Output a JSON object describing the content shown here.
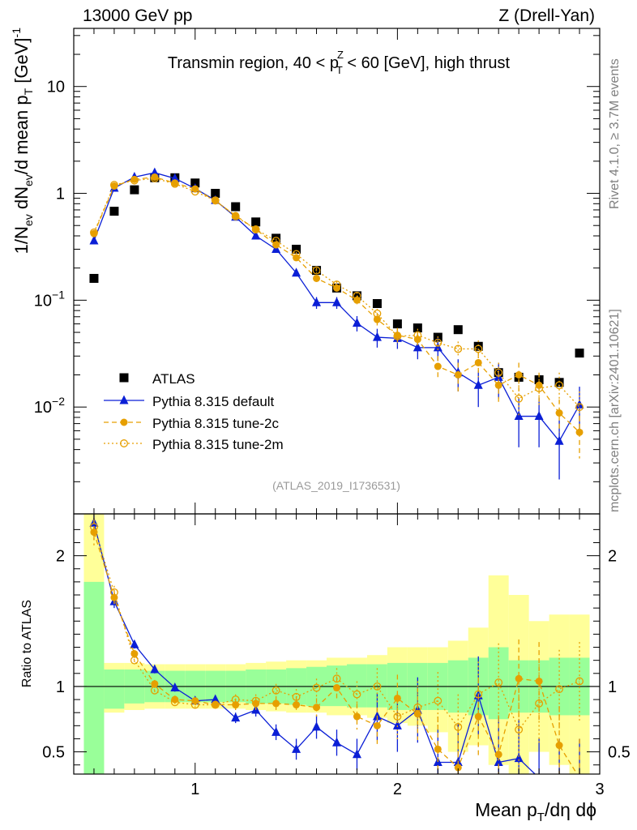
{
  "header": {
    "energy_label": "13000 GeV pp",
    "process_label": "Z (Drell-Yan)"
  },
  "side_labels": {
    "rivet": "Rivet 4.1.0, ≥ 3.7M events",
    "mcplots": "mcplots.cern.ch [arXiv:2401.10621]"
  },
  "chart_data": {
    "type": "scatter",
    "title_parts": [
      "Transmin region, 40 < p",
      "Z",
      "T",
      " < 60 [GeV], high thrust"
    ],
    "analysis_label": "(ATLAS_2019_I1736531)",
    "xlabel_parts": [
      "Mean p",
      "T",
      "/dη dϕ"
    ],
    "ylabel_parts": [
      "1/N",
      "ev",
      " dN",
      "ev",
      "/d mean p",
      "T",
      " [GeV]",
      "-1"
    ],
    "ratio_ylabel": "Ratio to ATLAS",
    "xlim": [
      0.4,
      3.0
    ],
    "ylim_log": [
      0.001,
      35
    ],
    "ratio_ylim": [
      0.33,
      2.32
    ],
    "x_ticks": [
      {
        "v": 1,
        "label": "1"
      },
      {
        "v": 2,
        "label": "2"
      },
      {
        "v": 3,
        "label": "3"
      }
    ],
    "y_ticks": [
      {
        "v": 10,
        "base": "10",
        "exp": ""
      },
      {
        "v": 1,
        "base": "1",
        "exp": ""
      },
      {
        "v": 0.1,
        "base": "10",
        "exp": "−1"
      },
      {
        "v": 0.01,
        "base": "10",
        "exp": "−2"
      }
    ],
    "ratio_ticks": [
      {
        "v": 0.5,
        "label": "0.5"
      },
      {
        "v": 1,
        "label": "1"
      },
      {
        "v": 2,
        "label": "2"
      }
    ],
    "x": [
      0.5,
      0.6,
      0.7,
      0.8,
      0.9,
      1.0,
      1.1,
      1.2,
      1.3,
      1.4,
      1.5,
      1.6,
      1.7,
      1.8,
      1.9,
      2.0,
      2.1,
      2.2,
      2.3,
      2.4,
      2.5,
      2.6,
      2.7,
      2.8,
      2.9
    ],
    "band_inner": [
      [
        0.3,
        1.8
      ],
      [
        0.83,
        1.13
      ],
      [
        0.87,
        1.13
      ],
      [
        0.88,
        1.12
      ],
      [
        0.88,
        1.12
      ],
      [
        0.88,
        1.12
      ],
      [
        0.88,
        1.12
      ],
      [
        0.88,
        1.12
      ],
      [
        0.87,
        1.13
      ],
      [
        0.87,
        1.13
      ],
      [
        0.86,
        1.14
      ],
      [
        0.85,
        1.15
      ],
      [
        0.85,
        1.16
      ],
      [
        0.84,
        1.17
      ],
      [
        0.84,
        1.17
      ],
      [
        0.82,
        1.18
      ],
      [
        0.82,
        1.18
      ],
      [
        0.82,
        1.18
      ],
      [
        0.8,
        1.2
      ],
      [
        0.78,
        1.22
      ],
      [
        0.75,
        1.3
      ],
      [
        0.8,
        1.2
      ],
      [
        0.8,
        1.2
      ],
      [
        0.78,
        1.22
      ],
      [
        0.78,
        1.22
      ]
    ],
    "band_outer": [
      [
        0.3,
        2.32
      ],
      [
        0.8,
        1.18
      ],
      [
        0.82,
        1.18
      ],
      [
        0.83,
        1.17
      ],
      [
        0.83,
        1.17
      ],
      [
        0.83,
        1.17
      ],
      [
        0.83,
        1.17
      ],
      [
        0.83,
        1.17
      ],
      [
        0.82,
        1.18
      ],
      [
        0.81,
        1.19
      ],
      [
        0.8,
        1.2
      ],
      [
        0.8,
        1.2
      ],
      [
        0.78,
        1.22
      ],
      [
        0.78,
        1.22
      ],
      [
        0.76,
        1.24
      ],
      [
        0.72,
        1.3
      ],
      [
        0.7,
        1.3
      ],
      [
        0.65,
        1.3
      ],
      [
        0.5,
        1.35
      ],
      [
        0.55,
        1.45
      ],
      [
        0.4,
        1.85
      ],
      [
        0.33,
        1.7
      ],
      [
        0.5,
        1.5
      ],
      [
        0.4,
        1.55
      ],
      [
        0.33,
        1.55
      ]
    ],
    "series": [
      {
        "name": "ATLAS",
        "color": "#000000",
        "marker": "square",
        "values": [
          0.16,
          0.68,
          1.08,
          1.4,
          1.4,
          1.25,
          1.0,
          0.75,
          0.54,
          0.38,
          0.3,
          0.19,
          0.13,
          0.11,
          0.093,
          0.06,
          0.055,
          0.045,
          0.053,
          0.037,
          0.021,
          0.019,
          0.018,
          0.017,
          0.032
        ]
      },
      {
        "name": "Pythia 8.315 default",
        "color": "#0b1fd6",
        "marker": "triangle",
        "line": "solid",
        "values": [
          0.36,
          1.12,
          1.42,
          1.56,
          1.38,
          1.11,
          0.86,
          0.6,
          0.4,
          0.3,
          0.18,
          0.095,
          0.095,
          0.061,
          0.045,
          0.044,
          0.036,
          0.036,
          0.021,
          0.016,
          0.019,
          0.0082,
          0.0082,
          0.0048,
          0.0105
        ],
        "errors": [
          0.02,
          0.05,
          0.06,
          0.06,
          0.06,
          0.05,
          0.04,
          0.03,
          0.02,
          0.015,
          0.01,
          0.012,
          0.012,
          0.01,
          0.009,
          0.009,
          0.008,
          0.009,
          0.007,
          0.006,
          0.007,
          0.004,
          0.004,
          0.0027,
          0.005
        ],
        "ratio": [
          2.25,
          1.65,
          1.32,
          1.13,
          0.99,
          0.89,
          0.9,
          0.76,
          0.82,
          0.65,
          0.52,
          0.69,
          0.57,
          0.48,
          0.77,
          0.7,
          0.82,
          0.42,
          0.42,
          0.93,
          0.42,
          0.45,
          0.3,
          0.3,
          0.3
        ],
        "ratio_err": [
          0.1,
          0.05,
          0.03,
          0.03,
          0.03,
          0.02,
          0.03,
          0.04,
          0.05,
          0.06,
          0.08,
          0.09,
          0.1,
          0.12,
          0.18,
          0.2,
          0.25,
          0.25,
          0.3,
          0.3,
          0.35,
          0.3,
          0.3,
          0.3,
          0.3
        ]
      },
      {
        "name": "Pythia 8.315 tune-2c",
        "color": "#e69f00",
        "marker": "dot",
        "line": "dashed",
        "values": [
          0.42,
          1.17,
          1.35,
          1.42,
          1.25,
          1.1,
          0.85,
          0.62,
          0.46,
          0.33,
          0.25,
          0.16,
          0.13,
          0.1,
          0.066,
          0.047,
          0.043,
          0.024,
          0.02,
          0.026,
          0.016,
          0.02,
          0.016,
          0.0088,
          0.0058
        ],
        "errors": [
          0.02,
          0.05,
          0.05,
          0.05,
          0.05,
          0.04,
          0.03,
          0.02,
          0.02,
          0.015,
          0.012,
          0.01,
          0.01,
          0.009,
          0.008,
          0.008,
          0.007,
          0.006,
          0.006,
          0.007,
          0.005,
          0.006,
          0.005,
          0.003,
          0.0025
        ],
        "ratio": [
          2.18,
          1.68,
          1.25,
          1.02,
          0.9,
          0.89,
          0.86,
          0.86,
          0.87,
          0.87,
          0.86,
          0.84,
          0.99,
          0.77,
          0.7,
          0.91,
          0.79,
          0.52,
          0.38,
          0.77,
          0.48,
          1.06,
          1.04,
          0.55,
          0.3
        ],
        "ratio_err": [
          0.1,
          0.05,
          0.03,
          0.03,
          0.03,
          0.02,
          0.03,
          0.04,
          0.05,
          0.05,
          0.06,
          0.07,
          0.08,
          0.1,
          0.14,
          0.18,
          0.2,
          0.25,
          0.3,
          0.3,
          0.3,
          0.3,
          0.3,
          0.3,
          0.3
        ]
      },
      {
        "name": "Pythia 8.315 tune-2m",
        "color": "#e69f00",
        "marker": "circle-open",
        "line": "dotted",
        "values": [
          0.43,
          1.2,
          1.32,
          1.38,
          1.23,
          1.04,
          0.86,
          0.61,
          0.46,
          0.36,
          0.27,
          0.19,
          0.14,
          0.11,
          0.075,
          0.046,
          0.047,
          0.04,
          0.035,
          0.035,
          0.021,
          0.012,
          0.015,
          0.016,
          0.01
        ],
        "errors": [
          0.02,
          0.05,
          0.05,
          0.05,
          0.05,
          0.04,
          0.03,
          0.02,
          0.02,
          0.015,
          0.012,
          0.01,
          0.01,
          0.009,
          0.008,
          0.008,
          0.007,
          0.006,
          0.006,
          0.007,
          0.005,
          0.004,
          0.005,
          0.005,
          0.004
        ],
        "ratio": [
          2.22,
          1.72,
          1.2,
          0.97,
          0.88,
          0.86,
          0.86,
          0.9,
          0.89,
          0.97,
          0.92,
          0.99,
          1.06,
          0.94,
          1.0,
          0.77,
          0.84,
          0.89,
          0.69,
          0.94,
          1.03,
          0.67,
          0.87,
          0.98,
          1.04
        ],
        "ratio_err": [
          0.1,
          0.05,
          0.03,
          0.03,
          0.03,
          0.02,
          0.03,
          0.04,
          0.05,
          0.05,
          0.06,
          0.07,
          0.08,
          0.1,
          0.14,
          0.18,
          0.2,
          0.22,
          0.25,
          0.25,
          0.3,
          0.3,
          0.3,
          0.3,
          0.3
        ]
      }
    ]
  }
}
